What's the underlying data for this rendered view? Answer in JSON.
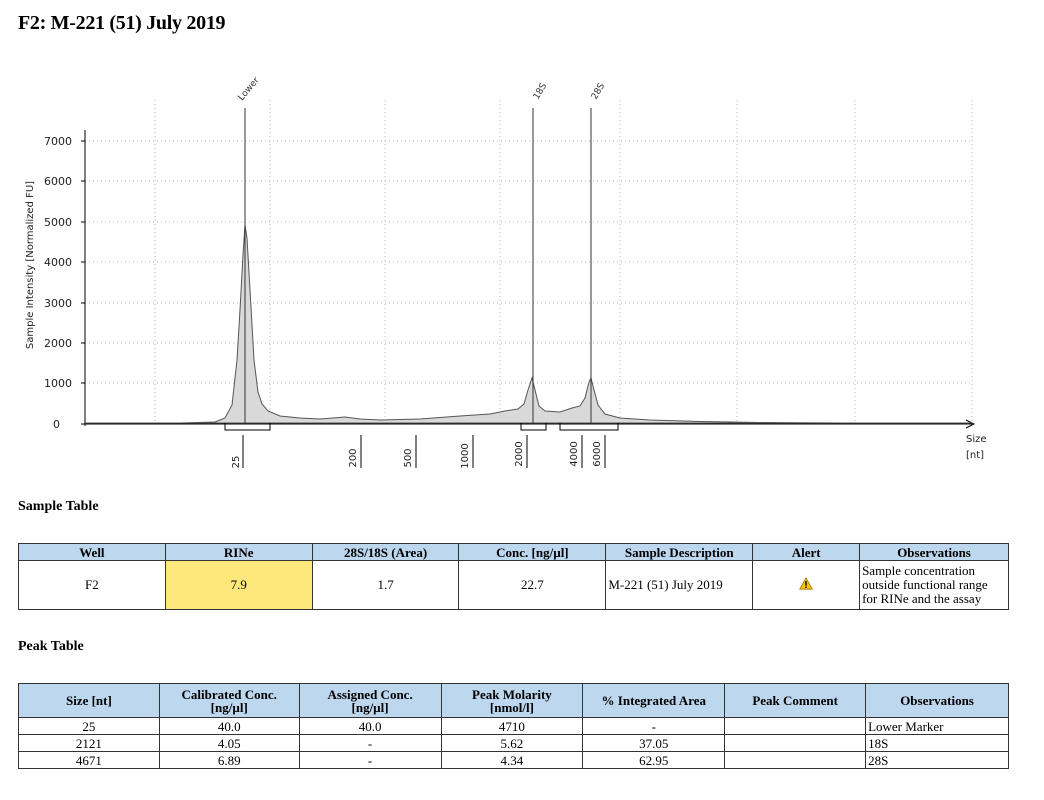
{
  "title": "F2: M-221 (51) July 2019",
  "electropherogram": {
    "y_axis_label": "Sample Intensity [Normalized FU]",
    "x_axis_label_line1": "Size",
    "x_axis_label_line2": "[nt]",
    "y_ticks": [
      "7000",
      "6000",
      "5000",
      "4000",
      "3000",
      "2000",
      "1000",
      "0"
    ],
    "peak_labels": [
      "Lower",
      "18S",
      "28S"
    ],
    "size_ladder": [
      "25",
      "200",
      "500",
      "1000",
      "2000",
      "4000",
      "6000"
    ],
    "colors": {
      "trace_fill": "#d9d9d9",
      "trace_line": "#555555",
      "grid": "#b5b5b5"
    }
  },
  "chart_data": {
    "type": "line",
    "title": "",
    "xlabel": "Size [nt]",
    "ylabel": "Sample Intensity [Normalized FU]",
    "ylim": [
      0,
      7500
    ],
    "x_scale": "ladder (non-linear)",
    "grid": true,
    "series": [
      {
        "x": [
          25,
          50,
          100,
          200,
          300,
          500,
          800,
          1000,
          1500,
          2000,
          2121,
          2500,
          3000,
          4000,
          4671,
          5500,
          6000,
          8000
        ],
        "values": [
          4950,
          150,
          80,
          130,
          60,
          80,
          160,
          220,
          300,
          350,
          1120,
          350,
          300,
          500,
          1120,
          150,
          80,
          0
        ]
      }
    ],
    "peaks": [
      {
        "label": "Lower",
        "size": 25,
        "height": 4950
      },
      {
        "label": "18S",
        "size": 2121,
        "height": 1120
      },
      {
        "label": "28S",
        "size": 4671,
        "height": 1120
      }
    ]
  },
  "sample_table": {
    "section_title": "Sample Table",
    "headers": [
      "Well",
      "RINe",
      "28S/18S (Area)",
      "Conc. [ng/µl]",
      "Sample Description",
      "Alert",
      "Observations"
    ],
    "row": {
      "well": "F2",
      "rine": "7.9",
      "ratio": "1.7",
      "conc": "22.7",
      "description": "M-221 (51) July 2019",
      "alert_icon": "warning-triangle-icon",
      "observations": "Sample concentration outside functional range for RINe and the assay"
    }
  },
  "peak_table": {
    "section_title": "Peak Table",
    "headers": {
      "size": "Size [nt]",
      "cal_line1": "Calibrated Conc.",
      "cal_line2": "[ng/µl]",
      "assigned_line1": "Assigned Conc.",
      "assigned_line2": "[ng/µl]",
      "molarity_line1": "Peak Molarity",
      "molarity_line2": "[nmol/l]",
      "area": "% Integrated Area",
      "comment": "Peak Comment",
      "observations": "Observations"
    },
    "rows": [
      {
        "size": "25",
        "calibrated": "40.0",
        "assigned": "40.0",
        "molarity": "4710",
        "area": "-",
        "comment": "",
        "observations": "Lower Marker"
      },
      {
        "size": "2121",
        "calibrated": "4.05",
        "assigned": "-",
        "molarity": "5.62",
        "area": "37.05",
        "comment": "",
        "observations": "18S"
      },
      {
        "size": "4671",
        "calibrated": "6.89",
        "assigned": "-",
        "molarity": "4.34",
        "area": "62.95",
        "comment": "",
        "observations": "28S"
      }
    ]
  }
}
